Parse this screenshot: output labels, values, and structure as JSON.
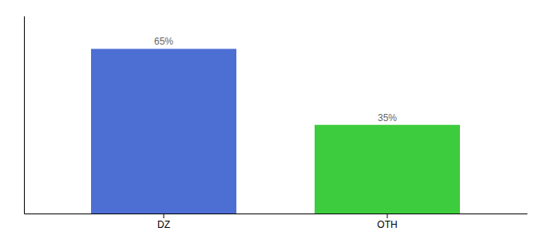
{
  "chart_data": {
    "type": "bar",
    "categories": [
      "DZ",
      "OTH"
    ],
    "values": [
      65,
      35
    ],
    "value_labels": [
      "65%",
      "35%"
    ],
    "colors": [
      "#4d6fd4",
      "#3dcc3d"
    ],
    "ylim": [
      0,
      78
    ],
    "data_labels": true,
    "tick_labels": "x"
  }
}
